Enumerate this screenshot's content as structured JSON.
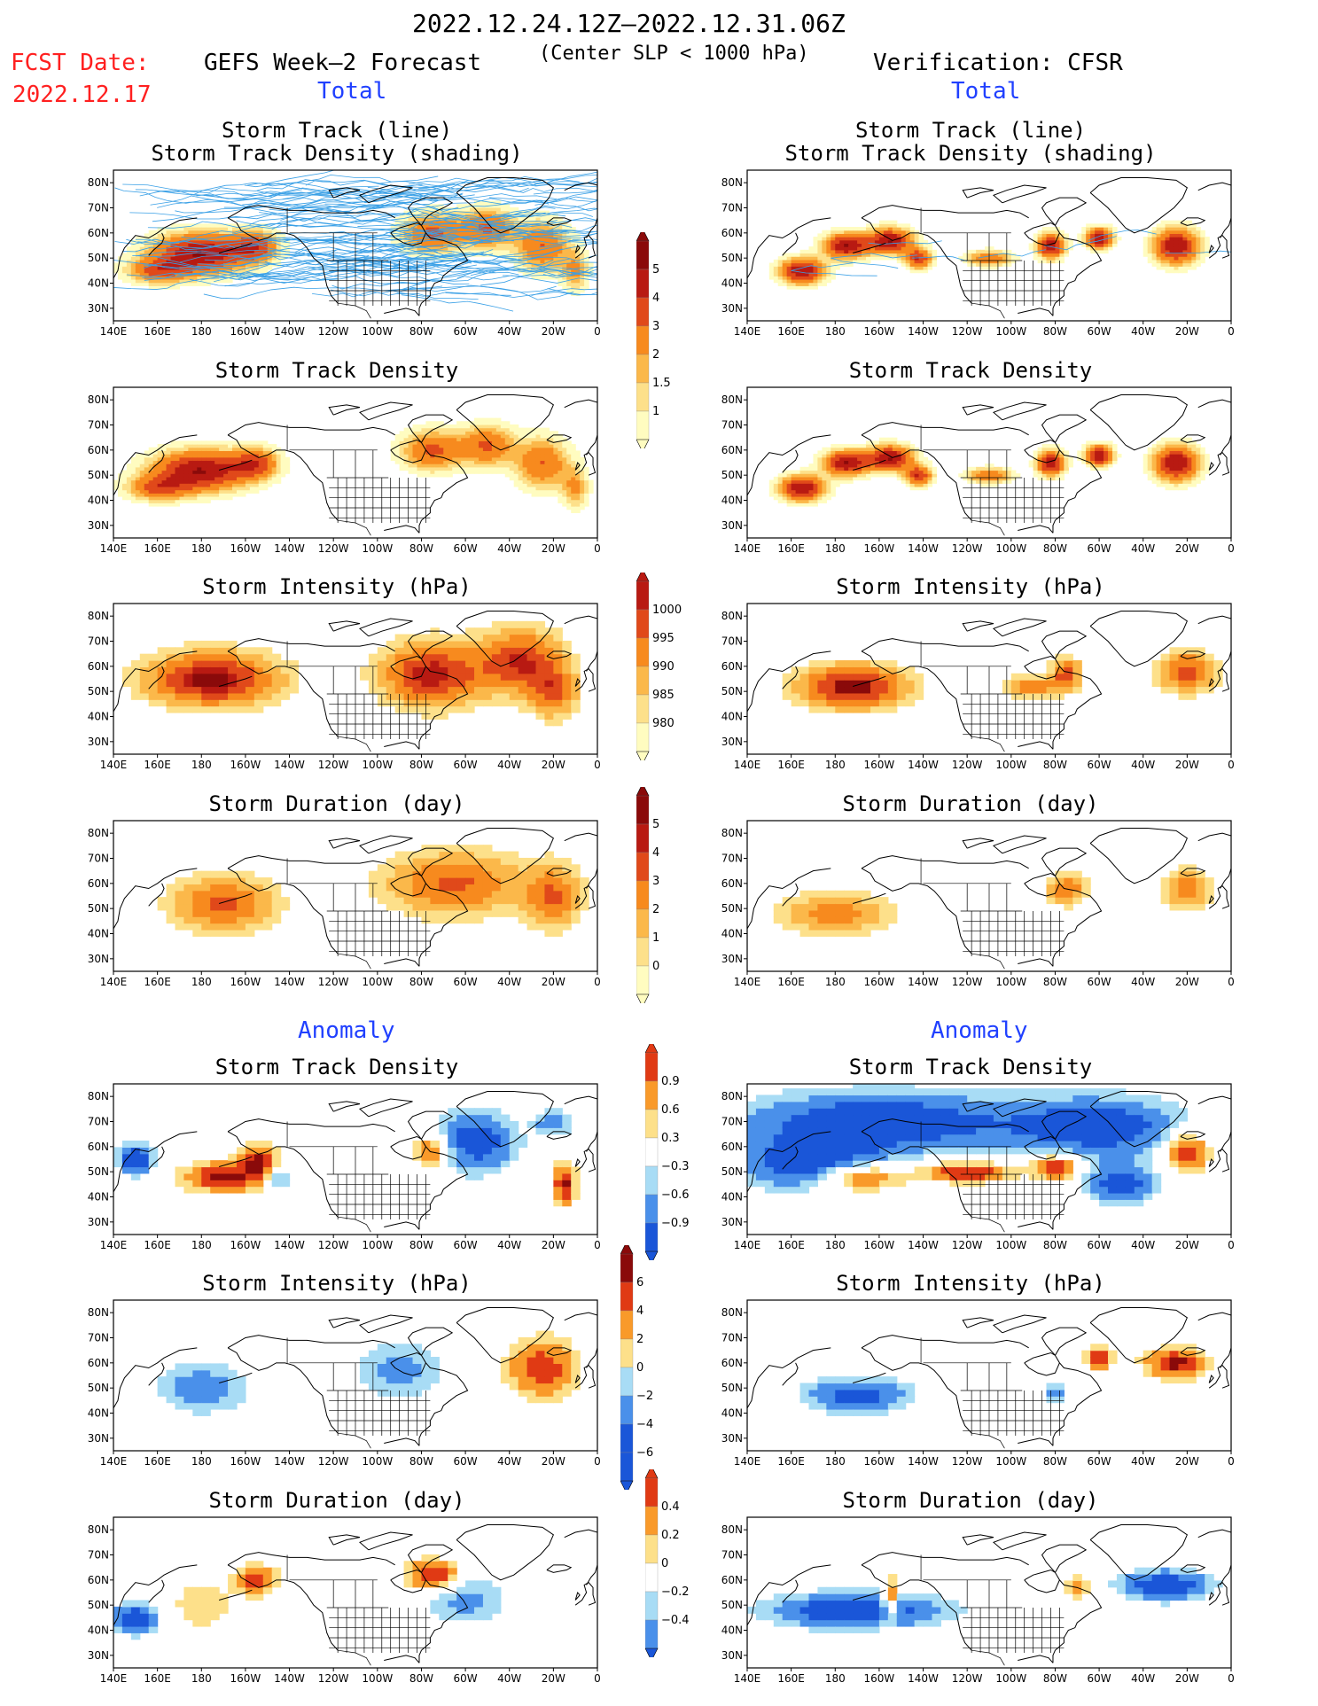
{
  "header": {
    "period": "2022.12.24.12Z–2022.12.31.06Z",
    "subtitle": "(Center SLP < 1000 hPa)",
    "fcst_label": "FCST Date:",
    "fcst_date": "2022.12.17",
    "left_title": "GEFS Week–2 Forecast",
    "right_title": "Verification: CFSR",
    "total_left": "Total",
    "total_right": "Total",
    "anomaly_left": "Anomaly",
    "anomaly_right": "Anomaly"
  },
  "panel_titles": {
    "track_line": "Storm Track (line)",
    "track_shading": "Storm Track Density (shading)",
    "density": "Storm Track Density",
    "intensity": "Storm Intensity (hPa)",
    "duration": "Storm Duration (day)"
  },
  "axes": {
    "lon_labels": [
      "140E",
      "160E",
      "180",
      "160W",
      "140W",
      "120W",
      "100W",
      "80W",
      "60W",
      "40W",
      "20W",
      "0"
    ],
    "lat_labels": [
      "80N",
      "70N",
      "60N",
      "50N",
      "40N",
      "30N"
    ]
  },
  "colors": {
    "ocean": "#ffffff",
    "coast": "#000000",
    "track_line": "#3aa0e6",
    "total_scale": [
      "#fffcc0",
      "#fde08a",
      "#fbb84a",
      "#f78a1e",
      "#e0491a",
      "#b81a12",
      "#8a0a0a"
    ],
    "anom_scale": [
      "#1a56d8",
      "#4a90ea",
      "#a8dcf5",
      "#ffffff",
      "#fde08a",
      "#f99a2a",
      "#e03a14",
      "#8a0a0a"
    ]
  },
  "colorbars": {
    "density": [
      "5",
      "4",
      "3",
      "2",
      "1.5",
      "1"
    ],
    "intensity": [
      "1000",
      "995",
      "990",
      "985",
      "980"
    ],
    "duration": [
      "5",
      "4",
      "3",
      "2",
      "1",
      "0"
    ],
    "anom_density": [
      "0.9",
      "0.6",
      "0.3",
      "−0.3",
      "−0.6",
      "−0.9"
    ],
    "anom_intensity": [
      "6",
      "4",
      "2",
      "0",
      "−2",
      "−4",
      "−6"
    ],
    "anom_duration": [
      "0.4",
      "0.2",
      "0",
      "−0.2",
      "−0.4"
    ]
  },
  "chart_data": [
    {
      "type": "heatmap",
      "title": "Storm Track Density",
      "source": "GEFS Week-2 Forecast",
      "variable": "density"
    },
    {
      "type": "heatmap",
      "title": "Storm Intensity (hPa)",
      "source": "GEFS Week-2 Forecast",
      "variable": "intensity"
    },
    {
      "type": "heatmap",
      "title": "Storm Duration (day)",
      "source": "GEFS Week-2 Forecast",
      "variable": "duration"
    },
    {
      "type": "heatmap",
      "title": "Storm Track Density",
      "source": "Verification: CFSR",
      "variable": "density"
    },
    {
      "type": "heatmap",
      "title": "Storm Intensity (hPa)",
      "source": "Verification: CFSR",
      "variable": "intensity"
    },
    {
      "type": "heatmap",
      "title": "Storm Duration (day)",
      "source": "Verification: CFSR",
      "variable": "duration"
    }
  ]
}
